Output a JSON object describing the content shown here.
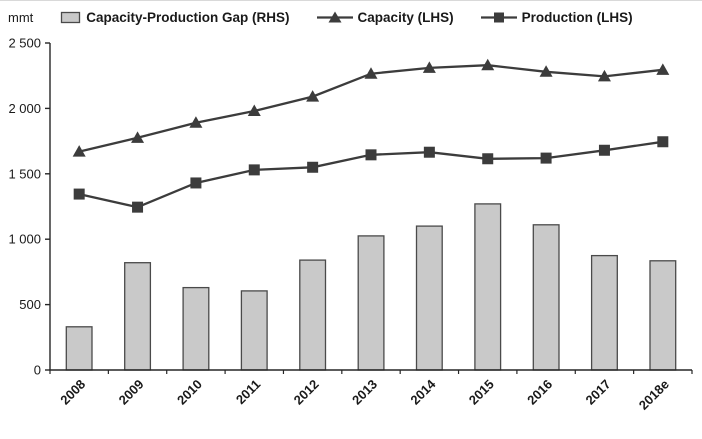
{
  "legend": [
    {
      "label": "Capacity-Production Gap (RHS)",
      "swatch": "bar"
    },
    {
      "label": "Capacity (LHS)",
      "swatch": "line-triangle"
    },
    {
      "label": "Production (LHS)",
      "swatch": "line-square"
    }
  ],
  "colors": {
    "bar_fill": "#c9c9c9",
    "bar_stroke": "#4a4a4a",
    "line": "#3c3c3c",
    "axis": "#262626",
    "text": "#1a1a1a"
  },
  "chart_data": {
    "type": "combo",
    "title": "",
    "ylabel": "mmt",
    "xlabel": "",
    "ylim": [
      0,
      2500
    ],
    "yticks": [
      0,
      500,
      1000,
      1500,
      2000,
      2500
    ],
    "ytick_labels": [
      "0",
      "500",
      "1 000",
      "1 500",
      "2 000",
      "2 500"
    ],
    "grid": false,
    "legend_position": "top",
    "categories": [
      "2008",
      "2009",
      "2010",
      "2011",
      "2012",
      "2013",
      "2014",
      "2015",
      "2016",
      "2017",
      "2018e"
    ],
    "series": [
      {
        "name": "Capacity-Production Gap (RHS)",
        "type": "bar",
        "axis": "right",
        "values": [
          330,
          820,
          630,
          605,
          840,
          1025,
          1100,
          1270,
          1110,
          875,
          835
        ]
      },
      {
        "name": "Capacity (LHS)",
        "type": "line",
        "marker": "triangle",
        "axis": "left",
        "values": [
          1670,
          1775,
          1890,
          1980,
          2090,
          2265,
          2310,
          2330,
          2280,
          2245,
          2295
        ]
      },
      {
        "name": "Production (LHS)",
        "type": "line",
        "marker": "square",
        "axis": "left",
        "values": [
          1345,
          1245,
          1430,
          1530,
          1550,
          1645,
          1665,
          1615,
          1620,
          1680,
          1745
        ]
      }
    ]
  }
}
